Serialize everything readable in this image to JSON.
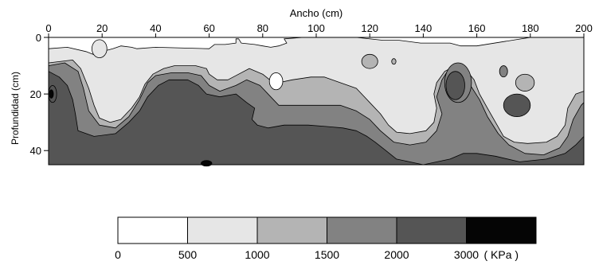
{
  "chart_data": {
    "type": "heatmap",
    "xlabel": "Ancho (cm)",
    "ylabel": "Profundidad (cm)",
    "xlim": [
      0,
      200
    ],
    "ylim": [
      0,
      45
    ],
    "xticks": [
      "0",
      "20",
      "40",
      "60",
      "80",
      "100",
      "120",
      "140",
      "160",
      "180",
      "200"
    ],
    "yticks": [
      "0",
      "20",
      "40"
    ],
    "x_axis_position": "top",
    "y_axis_inverted": true,
    "colorbar": {
      "levels": [
        0,
        500,
        1000,
        1500,
        2000,
        3000
      ],
      "tick_labels": [
        "0",
        "500",
        "1000",
        "1500",
        "2000",
        "3000"
      ],
      "unit_label": "( KPa )",
      "colors": [
        "#ffffff",
        "#e6e6e6",
        "#b4b4b4",
        "#828282",
        "#555555",
        "#050505"
      ]
    },
    "contour_bands": [
      {
        "range": "500-1000",
        "color": "#e6e6e6",
        "boundary": [
          [
            0,
            4
          ],
          [
            7,
            3.5
          ],
          [
            14,
            5
          ],
          [
            18,
            6.5
          ],
          [
            20,
            5
          ],
          [
            24,
            4
          ],
          [
            27,
            3
          ],
          [
            31,
            3.5
          ],
          [
            33,
            4
          ],
          [
            40,
            3.5
          ],
          [
            60,
            4
          ],
          [
            62,
            2.5
          ],
          [
            66,
            2.5
          ],
          [
            70,
            2
          ],
          [
            70,
            0.5
          ],
          [
            71,
            0.5
          ],
          [
            72,
            2
          ],
          [
            77,
            2.5
          ],
          [
            80,
            3
          ],
          [
            83,
            3.5
          ],
          [
            86,
            3
          ],
          [
            89,
            2
          ],
          [
            88,
            0.5
          ],
          [
            95,
            0
          ],
          [
            115,
            0
          ],
          [
            125,
            1
          ],
          [
            131,
            1
          ],
          [
            139,
            2
          ],
          [
            150,
            2
          ],
          [
            154,
            3
          ],
          [
            160,
            3
          ],
          [
            170,
            1.5
          ],
          [
            180,
            0
          ],
          [
            200,
            0
          ],
          [
            200,
            45
          ],
          [
            0,
            45
          ]
        ]
      },
      {
        "range": "1000-1500",
        "color": "#b4b4b4",
        "boundary": [
          [
            0,
            9
          ],
          [
            9,
            8
          ],
          [
            12,
            11
          ],
          [
            15,
            18
          ],
          [
            17,
            24
          ],
          [
            19,
            28.5
          ],
          [
            23,
            30
          ],
          [
            27,
            29
          ],
          [
            31,
            25
          ],
          [
            34,
            21
          ],
          [
            36,
            16.5
          ],
          [
            39,
            13
          ],
          [
            43,
            11
          ],
          [
            47,
            10
          ],
          [
            55,
            10
          ],
          [
            59,
            11
          ],
          [
            60,
            13
          ],
          [
            63,
            15
          ],
          [
            67,
            15
          ],
          [
            71,
            13
          ],
          [
            75,
            11
          ],
          [
            80,
            13
          ],
          [
            84,
            16
          ],
          [
            86,
            16
          ],
          [
            91,
            15
          ],
          [
            98,
            14
          ],
          [
            103,
            14
          ],
          [
            109,
            16
          ],
          [
            115,
            18
          ],
          [
            120,
            23
          ],
          [
            124,
            27
          ],
          [
            127,
            31
          ],
          [
            130,
            33.5
          ],
          [
            135,
            34
          ],
          [
            141,
            33
          ],
          [
            144,
            30
          ],
          [
            145,
            25
          ],
          [
            144,
            20
          ],
          [
            145,
            16
          ],
          [
            148,
            12
          ],
          [
            152,
            10
          ],
          [
            156,
            11.5
          ],
          [
            159,
            15
          ],
          [
            161,
            20
          ],
          [
            164,
            25
          ],
          [
            167,
            30
          ],
          [
            170,
            35
          ],
          [
            174,
            37
          ],
          [
            179,
            37.5
          ],
          [
            186,
            37
          ],
          [
            190,
            35
          ],
          [
            193,
            31
          ],
          [
            194,
            25
          ],
          [
            197,
            20
          ],
          [
            200,
            19
          ],
          [
            200,
            45
          ],
          [
            0,
            45
          ]
        ]
      },
      {
        "range": "1500-2000",
        "color": "#828282",
        "boundary": [
          [
            0,
            10
          ],
          [
            6,
            9
          ],
          [
            11,
            12
          ],
          [
            13,
            18
          ],
          [
            15,
            26
          ],
          [
            19,
            31
          ],
          [
            25,
            32
          ],
          [
            30,
            28
          ],
          [
            34,
            22
          ],
          [
            37,
            16
          ],
          [
            40,
            13.5
          ],
          [
            46,
            12.5
          ],
          [
            52,
            12.5
          ],
          [
            57,
            13.5
          ],
          [
            60,
            17
          ],
          [
            64,
            19
          ],
          [
            70,
            17
          ],
          [
            74,
            15
          ],
          [
            79,
            17
          ],
          [
            83,
            21
          ],
          [
            86,
            24
          ],
          [
            93,
            24
          ],
          [
            103,
            24
          ],
          [
            109,
            24
          ],
          [
            115,
            26
          ],
          [
            120,
            29
          ],
          [
            124,
            33
          ],
          [
            129,
            37
          ],
          [
            135,
            38
          ],
          [
            141,
            37
          ],
          [
            145,
            33
          ],
          [
            147,
            27
          ],
          [
            145,
            21
          ],
          [
            147,
            15
          ],
          [
            149,
            12
          ],
          [
            155,
            13
          ],
          [
            157,
            16
          ],
          [
            161,
            22
          ],
          [
            164,
            28
          ],
          [
            168,
            34
          ],
          [
            172,
            38
          ],
          [
            178,
            41
          ],
          [
            185,
            41.5
          ],
          [
            191,
            39
          ],
          [
            194,
            35
          ],
          [
            196,
            29
          ],
          [
            199,
            24
          ],
          [
            200,
            23
          ],
          [
            200,
            45
          ],
          [
            0,
            45
          ]
        ]
      },
      {
        "range": "2000-3000",
        "color": "#555555",
        "boundary": [
          [
            0,
            12
          ],
          [
            4,
            14
          ],
          [
            7,
            17
          ],
          [
            9,
            22
          ],
          [
            10,
            27
          ],
          [
            11,
            33
          ],
          [
            17,
            35
          ],
          [
            25,
            34
          ],
          [
            30,
            30
          ],
          [
            34,
            26
          ],
          [
            37,
            21
          ],
          [
            41,
            17
          ],
          [
            45,
            15
          ],
          [
            52,
            15
          ],
          [
            56,
            17
          ],
          [
            59,
            20
          ],
          [
            64,
            21
          ],
          [
            70,
            20
          ],
          [
            74,
            23
          ],
          [
            77,
            25
          ],
          [
            76,
            29
          ],
          [
            78,
            31
          ],
          [
            82,
            32
          ],
          [
            88,
            31
          ],
          [
            97,
            31
          ],
          [
            104,
            31.5
          ],
          [
            110,
            32
          ],
          [
            115,
            33
          ],
          [
            119,
            35
          ],
          [
            122,
            37
          ],
          [
            126,
            40
          ],
          [
            130,
            43
          ],
          [
            140,
            45
          ],
          [
            150,
            43
          ],
          [
            155,
            41
          ],
          [
            160,
            41
          ],
          [
            167,
            42
          ],
          [
            176,
            44
          ],
          [
            186,
            43
          ],
          [
            193,
            41
          ],
          [
            197,
            38
          ],
          [
            200,
            35
          ],
          [
            200,
            45
          ],
          [
            0,
            45
          ]
        ]
      }
    ],
    "contour_islands": [
      {
        "range": "500-1000",
        "color": "#e6e6e6",
        "center": [
          19,
          4
        ],
        "radius": [
          2.8,
          3.2
        ]
      },
      {
        "range": "0-500",
        "color": "#ffffff",
        "center": [
          85,
          15.5
        ],
        "radius": [
          2.5,
          3
        ]
      },
      {
        "range": "1000-1500",
        "color": "#b4b4b4",
        "center": [
          120,
          8.5
        ],
        "radius": [
          3,
          2.5
        ]
      },
      {
        "range": "1000-1500",
        "color": "#b4b4b4",
        "center": [
          129,
          8.5
        ],
        "radius": [
          0.8,
          1
        ]
      },
      {
        "range": "1000-1500",
        "color": "#b4b4b4",
        "center": [
          178,
          16
        ],
        "radius": [
          3.5,
          3
        ]
      },
      {
        "range": "1500-2000",
        "color": "#828282",
        "center": [
          153,
          16
        ],
        "radius": [
          5,
          7
        ]
      },
      {
        "range": "2000-3000",
        "color": "#555555",
        "center": [
          152,
          17
        ],
        "radius": [
          3.5,
          5
        ]
      },
      {
        "range": "1500-2000",
        "color": "#828282",
        "center": [
          170,
          12
        ],
        "radius": [
          1.5,
          2
        ]
      },
      {
        "range": "2000-3000",
        "color": "#555555",
        "center": [
          175,
          24
        ],
        "radius": [
          5,
          4
        ]
      },
      {
        "range": "2000-3000",
        "color": "#555555",
        "center": [
          1.5,
          20
        ],
        "radius": [
          1.5,
          3
        ]
      },
      {
        "range": ">3000",
        "color": "#050505",
        "center": [
          1,
          20
        ],
        "radius": [
          0.8,
          1.5
        ]
      },
      {
        "range": ">3000",
        "color": "#050505",
        "center": [
          59,
          44.5
        ],
        "radius": [
          2,
          1
        ]
      }
    ]
  }
}
